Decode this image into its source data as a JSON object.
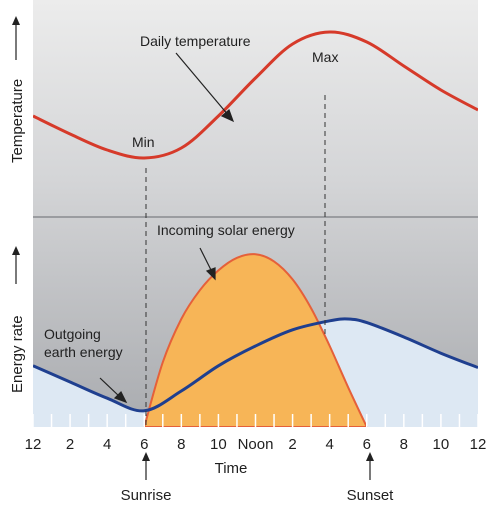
{
  "chart_data": [
    {
      "panel": "top",
      "type": "line",
      "ylabel": "Temperature",
      "series": [
        {
          "name": "Daily temperature",
          "color": "#d63a2a",
          "x": [
            0,
            2,
            4,
            6,
            8,
            10,
            12,
            14,
            16,
            18,
            20,
            22,
            24
          ],
          "y": [
            4.7,
            3.8,
            3.0,
            2.6,
            3.1,
            4.7,
            6.6,
            8.3,
            8.9,
            8.4,
            7.2,
            6.0,
            5.0
          ]
        }
      ],
      "annotations": [
        {
          "text": "Min",
          "x": 6
        },
        {
          "text": "Max",
          "x": 16
        },
        {
          "text": "Daily temperature"
        }
      ]
    },
    {
      "panel": "bottom",
      "type": "area",
      "ylabel": "Energy rate",
      "series": [
        {
          "name": "Incoming solar energy",
          "color": "#f7b557",
          "x": [
            6,
            7,
            8,
            9,
            10,
            11,
            12,
            13,
            14,
            15,
            16,
            17,
            18
          ],
          "y": [
            0,
            3.6,
            6.0,
            7.6,
            8.7,
            9.4,
            9.6,
            9.2,
            8.2,
            6.6,
            4.5,
            2.2,
            0
          ]
        },
        {
          "name": "Outgoing earth energy",
          "color": "#1f3f8f",
          "x": [
            0,
            2,
            4,
            6,
            8,
            10,
            12,
            14,
            16,
            17,
            18,
            20,
            22,
            24
          ],
          "y": [
            3.4,
            2.5,
            1.6,
            0.9,
            2.0,
            3.4,
            4.5,
            5.4,
            5.9,
            6.0,
            5.8,
            5.0,
            4.1,
            3.3
          ]
        }
      ],
      "annotations": [
        {
          "text": "Incoming solar energy"
        },
        {
          "text": "Outgoing earth energy"
        }
      ]
    }
  ],
  "x_axis": {
    "title": "Time",
    "ticks": [
      {
        "hour": 0,
        "label": "12"
      },
      {
        "hour": 2,
        "label": "2"
      },
      {
        "hour": 4,
        "label": "4"
      },
      {
        "hour": 6,
        "label": "6"
      },
      {
        "hour": 8,
        "label": "8"
      },
      {
        "hour": 10,
        "label": "10"
      },
      {
        "hour": 12,
        "label": "Noon"
      },
      {
        "hour": 14,
        "label": "2"
      },
      {
        "hour": 16,
        "label": "4"
      },
      {
        "hour": 18,
        "label": "6"
      },
      {
        "hour": 20,
        "label": "8"
      },
      {
        "hour": 22,
        "label": "10"
      },
      {
        "hour": 24,
        "label": "12"
      }
    ],
    "markers": [
      {
        "label": "Sunrise",
        "hour": 6
      },
      {
        "label": "Sunset",
        "hour": 18
      }
    ]
  },
  "labels": {
    "temp_title": "Daily temperature",
    "min": "Min",
    "max": "Max",
    "solar": "Incoming solar energy",
    "outgoing_1": "Outgoing",
    "outgoing_2": "earth energy",
    "y_top": "Temperature",
    "y_bottom": "Energy rate",
    "x_title": "Time",
    "sunrise": "Sunrise",
    "sunset": "Sunset"
  },
  "colors": {
    "temperature": "#d63a2a",
    "solar_fill": "#f7b557",
    "solar_edge": "#e5603a",
    "outgoing": "#1f3f8f",
    "below_outgoing": "#dde8f3",
    "panel_bg": "#c6c7ca",
    "divider": "#9a9ca0"
  }
}
